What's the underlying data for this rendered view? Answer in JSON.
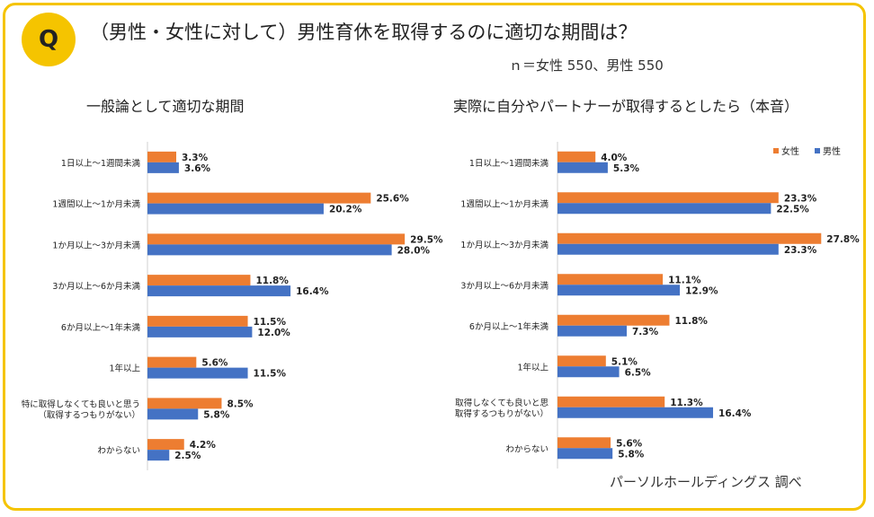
{
  "header": {
    "badge": "Q",
    "title": "（男性・女性に対して）男性育休を取得するのに適切な期間は？",
    "sample": "ｎ＝女性 550、男性 550"
  },
  "credit": "パーソルホールディングス 調べ",
  "colors": {
    "female": "#ed7d31",
    "male": "#4472c4",
    "accent": "#f5c400"
  },
  "chart_data": [
    {
      "type": "bar",
      "orientation": "horizontal",
      "title": "一般論として適切な期間",
      "categories": [
        [
          "1日以上～1週間未満"
        ],
        [
          "1週間以上～1か月未満"
        ],
        [
          "1か月以上～3か月未満"
        ],
        [
          "3か月以上～6か月未満"
        ],
        [
          "6か月以上～1年未満"
        ],
        [
          "1年以上"
        ],
        [
          "特に取得しなくても良いと思う",
          "（取得するつもりがない）"
        ],
        [
          "わからない"
        ]
      ],
      "series": [
        {
          "name": "女性",
          "values": [
            3.3,
            25.6,
            29.5,
            11.8,
            11.5,
            5.6,
            8.5,
            4.2
          ],
          "labels": [
            "3.3%",
            "25.6%",
            "29.5%",
            "11.8%",
            "11.5%",
            "5.6%",
            "8.5%",
            "4.2%"
          ]
        },
        {
          "name": "男性",
          "values": [
            3.6,
            20.2,
            28.0,
            16.4,
            12.0,
            11.5,
            5.8,
            2.5
          ],
          "labels": [
            "3.6%",
            "20.2%",
            "28.0%",
            "16.4%",
            "12.0%",
            "11.5%",
            "5.8%",
            "2.5%"
          ]
        }
      ],
      "xlim": [
        0,
        30
      ],
      "legend": false
    },
    {
      "type": "bar",
      "orientation": "horizontal",
      "title": "実際に自分やパートナーが取得するとしたら（本音）",
      "categories": [
        [
          "1日以上～1週間未満"
        ],
        [
          "1週間以上～1か月未満"
        ],
        [
          "1か月以上～3か月未満"
        ],
        [
          "3か月以上～6か月未満"
        ],
        [
          "6か月以上～1年未満"
        ],
        [
          "1年以上"
        ],
        [
          "取得しなくても良いと思",
          "取得するつもりがない）"
        ],
        [
          "わからない"
        ]
      ],
      "series": [
        {
          "name": "女性",
          "values": [
            4.0,
            23.3,
            27.8,
            11.1,
            11.8,
            5.1,
            11.3,
            5.6
          ],
          "labels": [
            "4.0%",
            "23.3%",
            "27.8%",
            "11.1%",
            "11.8%",
            "5.1%",
            "11.3%",
            "5.6%"
          ]
        },
        {
          "name": "男性",
          "values": [
            5.3,
            22.5,
            23.3,
            12.9,
            7.3,
            6.5,
            16.4,
            5.8
          ],
          "labels": [
            "5.3%",
            "22.5%",
            "23.3%",
            "12.9%",
            "7.3%",
            "6.5%",
            "16.4%",
            "5.8%"
          ]
        }
      ],
      "xlim": [
        0,
        28
      ],
      "legend": true,
      "legend_position": "top-right"
    }
  ]
}
